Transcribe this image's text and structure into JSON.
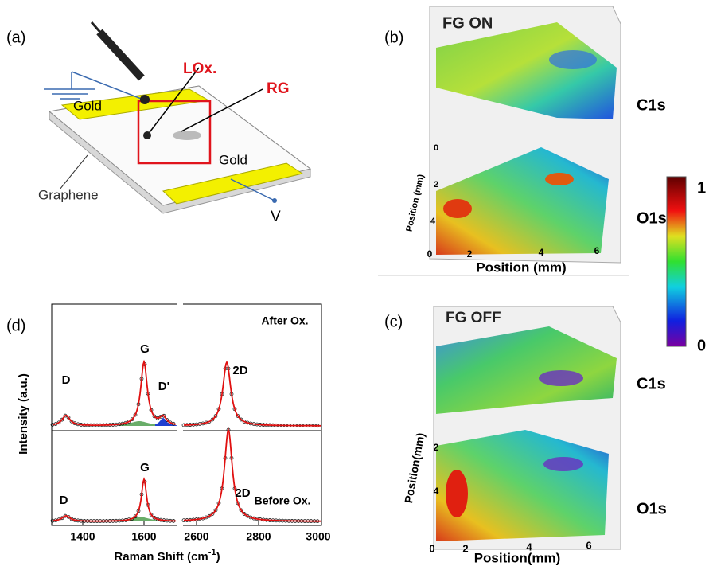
{
  "panel_a": {
    "label": "(a)",
    "lox": "LOx.",
    "rg": "RG",
    "gold_top": "Gold",
    "gold_bottom": "Gold",
    "graphene": "Graphene",
    "voltage": "V"
  },
  "panel_b": {
    "label": "(b)",
    "title": "FG ON",
    "upper": "C1s",
    "lower": "O1s",
    "x_label": "Position (mm)",
    "y_label": "Position (mm)",
    "x_ticks": [
      "0",
      "2",
      "4",
      "6"
    ],
    "y_ticks": [
      "0",
      "2",
      "4"
    ]
  },
  "colorbar": {
    "max": "1",
    "min": "0"
  },
  "panel_c": {
    "label": "(c)",
    "title": "FG OFF",
    "upper": "C1s",
    "lower": "O1s",
    "x_label": "Position(mm)",
    "y_label": "Position(mm)",
    "x_ticks": [
      "0",
      "2",
      "4",
      "6"
    ],
    "y_ticks": [
      "2",
      "4"
    ]
  },
  "panel_d": {
    "label": "(d)",
    "after": "After Ox.",
    "before": "Before Ox.",
    "y_label": "Intensity (a.u.)",
    "x_label": "Raman Shift (cm",
    "x_label_sup": "-1",
    "x_label_end": ")",
    "x_ticks": [
      "1400",
      "1600",
      "2600",
      "2800",
      "3000"
    ],
    "peaks_after": [
      "D",
      "G",
      "D'",
      "2D"
    ],
    "peaks_before": [
      "D",
      "G",
      "2D"
    ]
  }
}
